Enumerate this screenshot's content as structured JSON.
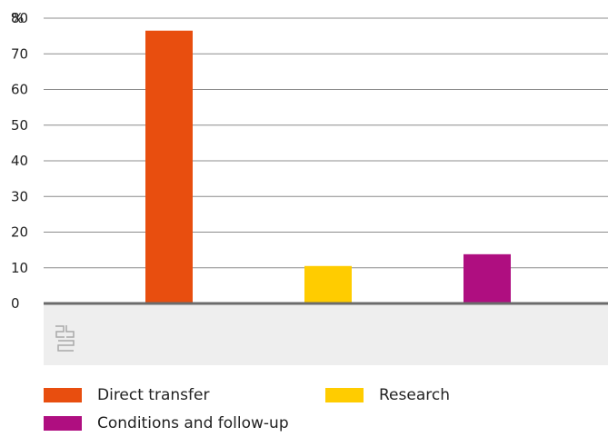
{
  "chart_data": {
    "type": "bar",
    "unit_label": "%",
    "categories": [
      "Direct transfer",
      "Research",
      "Conditions and follow-up"
    ],
    "values": [
      76.5,
      10.5,
      13.8
    ],
    "colors": [
      "#e84e0f",
      "#ffcc00",
      "#af0e80"
    ],
    "yticks": [
      0,
      10,
      20,
      30,
      40,
      50,
      60,
      70,
      80
    ],
    "ylim": [
      0,
      80
    ],
    "grid": true,
    "legend_position": "bottom",
    "logo_icon": "cbs-logo-icon"
  }
}
